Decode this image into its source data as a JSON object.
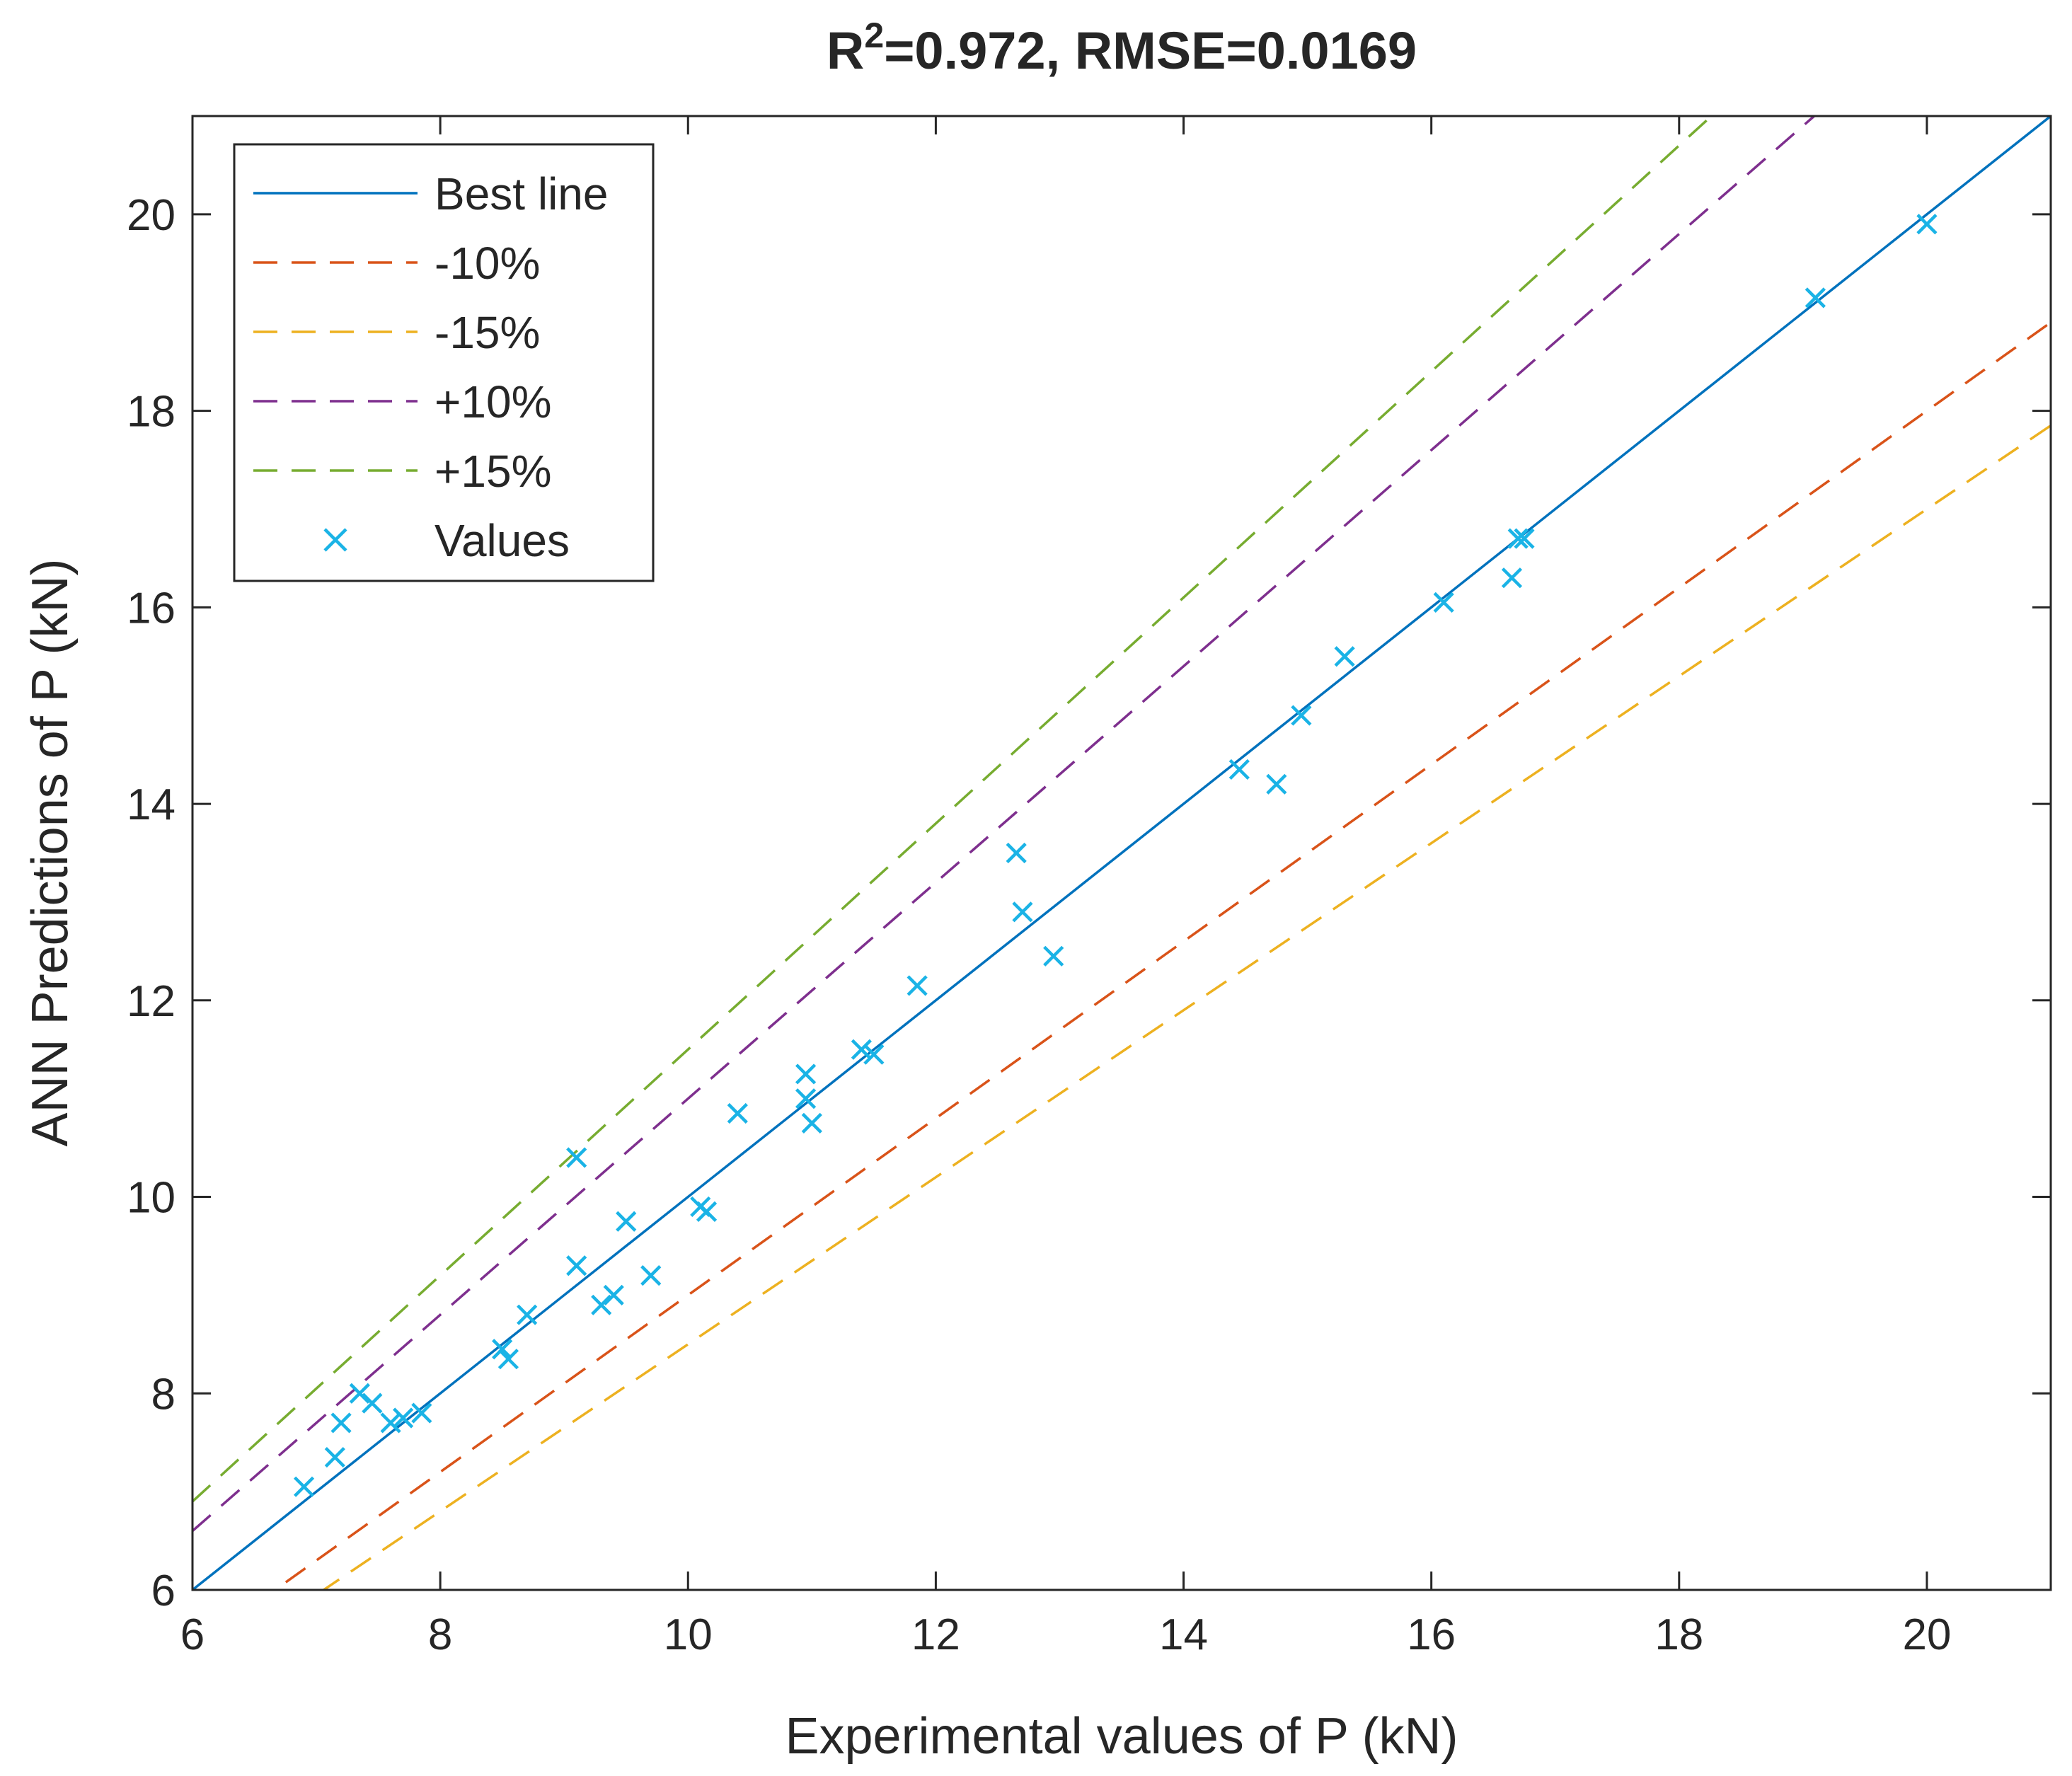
{
  "chart_data": {
    "type": "scatter",
    "title_main": "R",
    "title_sup": "2",
    "title_rest": "=0.972, RMSE=0.0169",
    "xlabel": "Experimental values of P (kN)",
    "ylabel": "ANN Predictions of P (kN)",
    "xlim": [
      6,
      21
    ],
    "ylim": [
      6,
      21
    ],
    "xticks": [
      6,
      8,
      10,
      12,
      14,
      16,
      18,
      20
    ],
    "yticks": [
      6,
      8,
      10,
      12,
      14,
      16,
      18,
      20
    ],
    "grid": false,
    "legend_position": "top-left",
    "lines": [
      {
        "name": "Best line",
        "slope": 1.0,
        "color": "#0072BD",
        "dashed": false
      },
      {
        "name": "-10%",
        "slope": 0.9,
        "color": "#D95319",
        "dashed": true
      },
      {
        "name": "-15%",
        "slope": 0.85,
        "color": "#EDB120",
        "dashed": true
      },
      {
        "name": "+10%",
        "slope": 1.1,
        "color": "#7E2F8E",
        "dashed": true
      },
      {
        "name": "+15%",
        "slope": 1.15,
        "color": "#77AC30",
        "dashed": true
      }
    ],
    "points": {
      "name": "Values",
      "color": "#1AB3E6",
      "x": [
        6.9,
        7.15,
        7.2,
        7.35,
        7.45,
        7.6,
        7.7,
        7.85,
        8.5,
        8.55,
        8.7,
        9.1,
        9.1,
        9.3,
        9.4,
        9.5,
        9.7,
        10.1,
        10.15,
        10.4,
        10.95,
        10.95,
        11.0,
        11.4,
        11.5,
        11.85,
        12.65,
        12.7,
        12.95,
        14.45,
        14.75,
        14.95,
        15.3,
        16.1,
        16.65,
        16.7,
        16.75,
        19.1,
        20.0
      ],
      "y": [
        7.05,
        7.35,
        7.7,
        8.0,
        7.9,
        7.7,
        7.75,
        7.8,
        8.45,
        8.35,
        8.8,
        10.4,
        9.3,
        8.9,
        9.0,
        9.75,
        9.2,
        9.9,
        9.85,
        10.85,
        11.25,
        11.0,
        10.75,
        11.5,
        11.45,
        12.15,
        13.5,
        12.9,
        12.45,
        14.35,
        14.2,
        14.9,
        15.5,
        16.05,
        16.3,
        16.7,
        16.7,
        19.15,
        19.9
      ]
    }
  }
}
